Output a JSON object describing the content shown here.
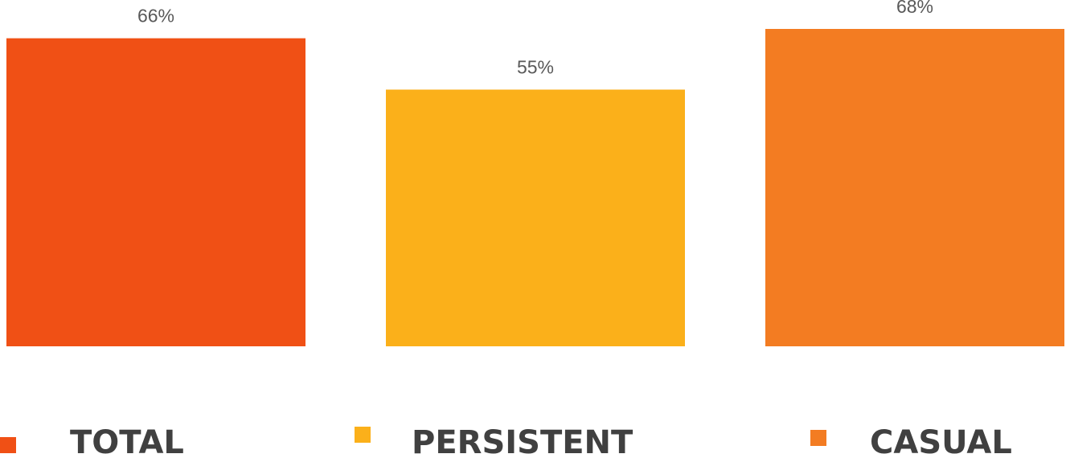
{
  "chart_data": {
    "type": "bar",
    "categories": [
      "TOTAL",
      "PERSISTENT",
      "CASUAL"
    ],
    "values": [
      66,
      55,
      68
    ],
    "value_labels": [
      "66%",
      "55%",
      "68%"
    ],
    "ylim": [
      0,
      68
    ],
    "unit": "%",
    "grid": false,
    "axes_visible": false,
    "legend_position": "bottom",
    "colors": [
      "#F05015",
      "#FBB01A",
      "#F37C22"
    ]
  }
}
